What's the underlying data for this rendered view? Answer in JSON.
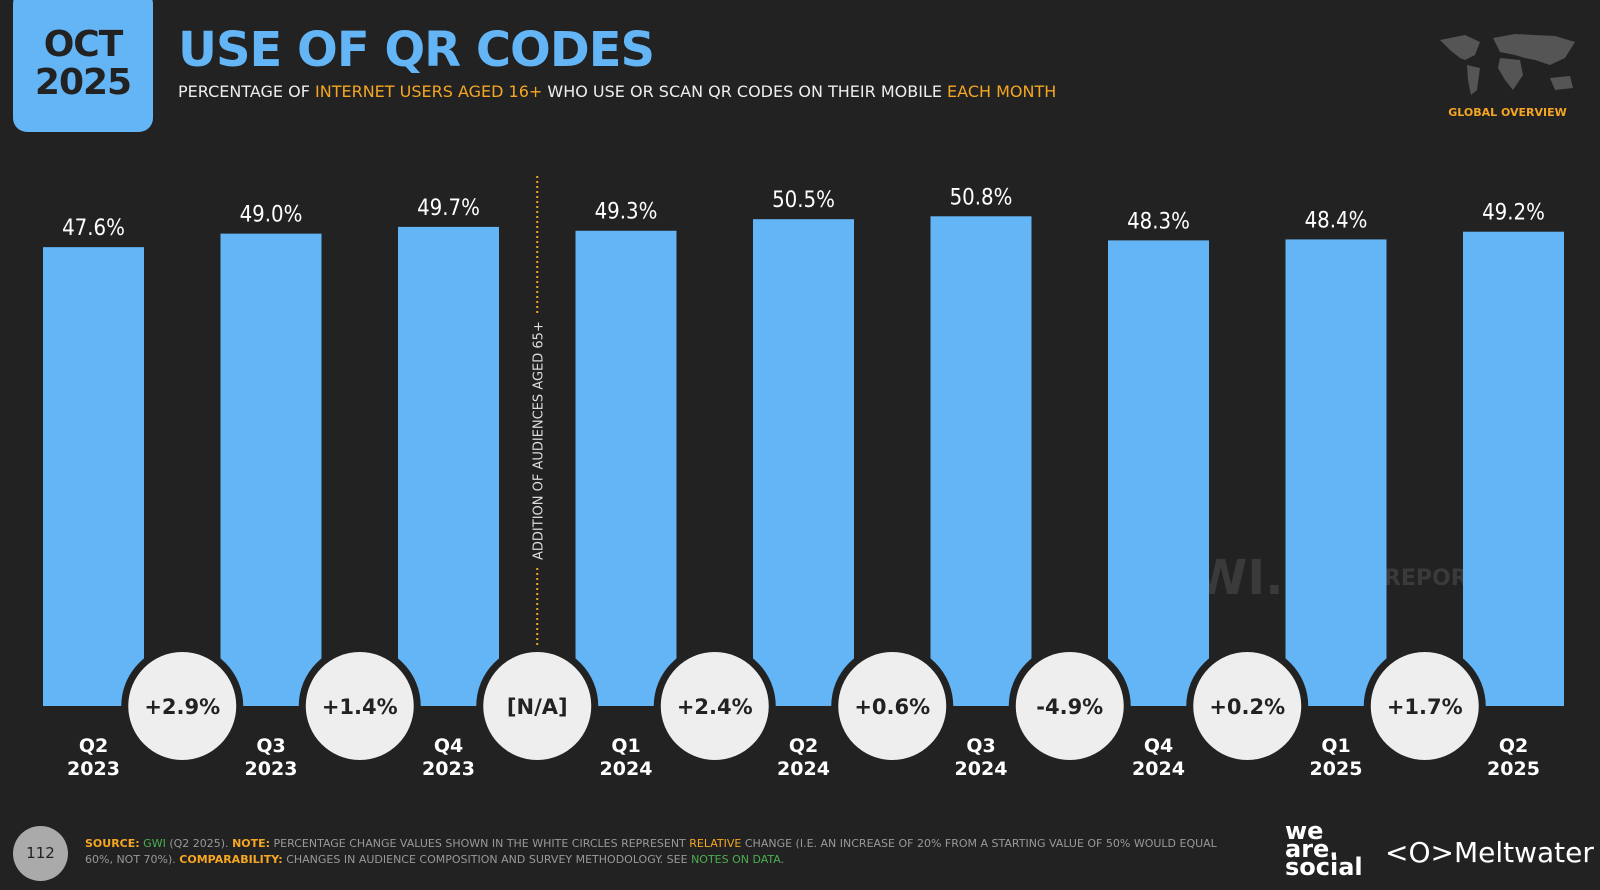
{
  "header": {
    "date_month": "OCT",
    "date_year": "2025",
    "title": "USE OF QR CODES",
    "subtitle_parts": [
      "PERCENTAGE OF ",
      "INTERNET USERS AGED 16+",
      " WHO USE OR SCAN QR CODES ON THEIR MOBILE ",
      "EACH MONTH"
    ],
    "region_label": "GLOBAL OVERVIEW"
  },
  "chart_data": {
    "type": "bar",
    "categories": [
      [
        "Q2",
        "2023"
      ],
      [
        "Q3",
        "2023"
      ],
      [
        "Q4",
        "2023"
      ],
      [
        "Q1",
        "2024"
      ],
      [
        "Q2",
        "2024"
      ],
      [
        "Q3",
        "2024"
      ],
      [
        "Q4",
        "2024"
      ],
      [
        "Q1",
        "2025"
      ],
      [
        "Q2",
        "2025"
      ]
    ],
    "values": [
      47.6,
      49.0,
      49.7,
      49.3,
      50.5,
      50.8,
      48.3,
      48.4,
      49.2
    ],
    "value_labels": [
      "47.6%",
      "49.0%",
      "49.7%",
      "49.3%",
      "50.5%",
      "50.8%",
      "48.3%",
      "48.4%",
      "49.2%"
    ],
    "changes": [
      "+2.9%",
      "+1.4%",
      "[N/A]",
      "+2.4%",
      "+0.6%",
      "-4.9%",
      "+0.2%",
      "+1.7%"
    ],
    "annotation": "ADDITION OF AUDIENCES AGED 65+",
    "bar_color": "#64b5f6",
    "ylim": [
      0,
      52
    ]
  },
  "watermarks": [
    "GWI.",
    "DATAREPORTAL"
  ],
  "footer": {
    "page": "112",
    "source_label": "SOURCE:",
    "source": "GWI",
    "source_rest": " (Q2 2025). ",
    "note_label": "NOTE:",
    "note": " PERCENTAGE CHANGE VALUES SHOWN IN THE WHITE CIRCLES REPRESENT ",
    "note_hl": "RELATIVE",
    "note_rest": " CHANGE (I.E. AN INCREASE OF 20% FROM A STARTING VALUE OF 50% WOULD EQUAL 60%, NOT 70%). ",
    "comp_label": "COMPARABILITY:",
    "comp": " CHANGES IN AUDIENCE COMPOSITION AND SURVEY METHODOLOGY. SEE ",
    "comp_link": "NOTES ON DATA",
    "comp_end": "."
  },
  "logos": {
    "we_are_social": "we are social",
    "meltwater": "Meltwater"
  }
}
